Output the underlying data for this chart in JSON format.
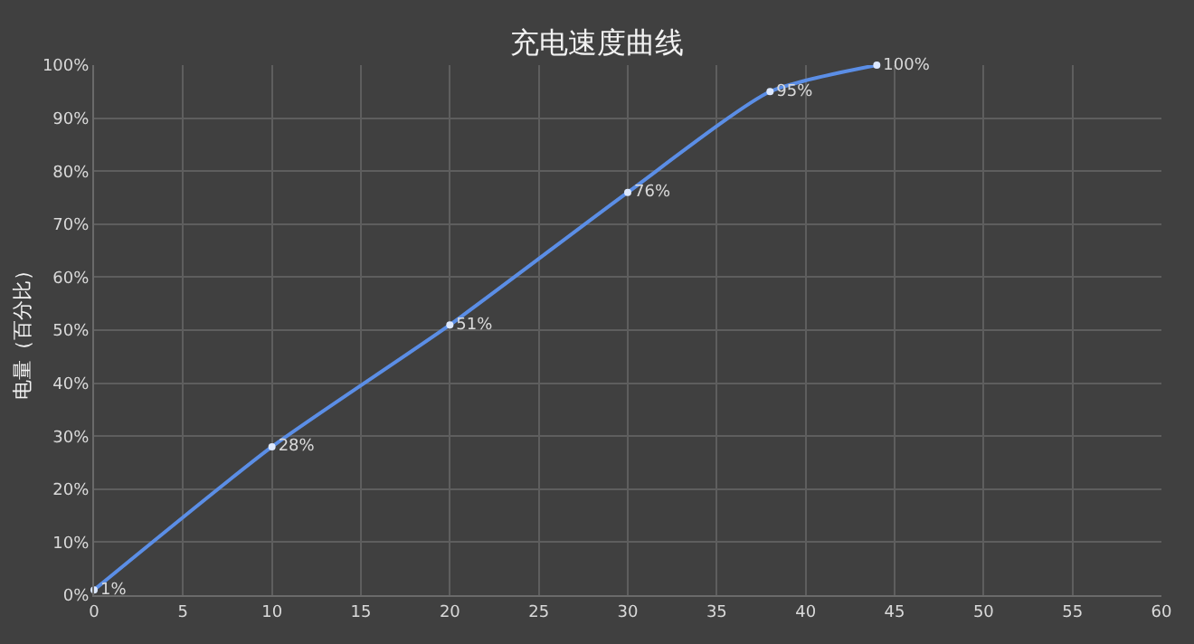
{
  "chart_data": {
    "type": "line",
    "title": "充电速度曲线",
    "ylabel": "电量（百分比）",
    "x": [
      0,
      10,
      20,
      30,
      38,
      44
    ],
    "series": [
      {
        "color": "#5b8ee6",
        "values": [
          1,
          28,
          51,
          76,
          95,
          100
        ],
        "value_labels": [
          "1%",
          "28%",
          "51%",
          "76%",
          "95%",
          "100%"
        ]
      }
    ],
    "xlim": [
      0,
      60
    ],
    "xticks": [
      0,
      5,
      10,
      15,
      20,
      25,
      30,
      35,
      40,
      45,
      50,
      55,
      60
    ],
    "ylim": [
      0,
      100
    ],
    "yticks": [
      {
        "value": 0,
        "label": "0%"
      },
      {
        "value": 10,
        "label": "10%"
      },
      {
        "value": 20,
        "label": "20%"
      },
      {
        "value": 30,
        "label": "30%"
      },
      {
        "value": 40,
        "label": "40%"
      },
      {
        "value": 50,
        "label": "50%"
      },
      {
        "value": 60,
        "label": "60%"
      },
      {
        "value": 70,
        "label": "70%"
      },
      {
        "value": 80,
        "label": "80%"
      },
      {
        "value": 90,
        "label": "90%"
      },
      {
        "value": 100,
        "label": "100%"
      }
    ],
    "grid": true,
    "marker": "circle",
    "line_style": "solid"
  }
}
